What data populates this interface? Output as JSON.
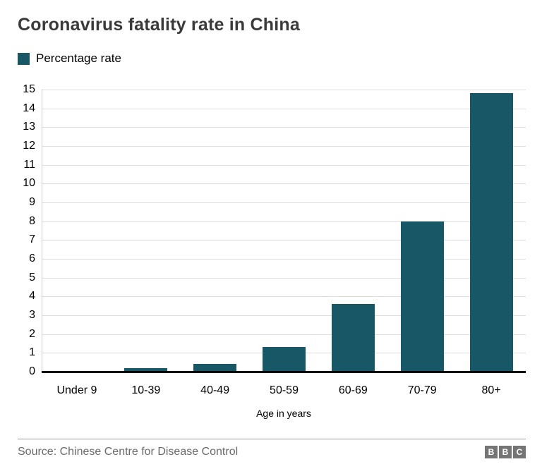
{
  "header": {
    "title": "Coronavirus fatality rate in China",
    "legend": {
      "label": "Percentage rate",
      "swatch_color": "#175766"
    }
  },
  "chart_data": {
    "type": "bar",
    "title": "Coronavirus fatality rate in China",
    "series_name": "Percentage rate",
    "categories": [
      "Under 9",
      "10-39",
      "40-49",
      "50-59",
      "60-69",
      "70-79",
      "80+"
    ],
    "values": [
      0,
      0.2,
      0.4,
      1.3,
      3.6,
      8.0,
      14.8
    ],
    "xlabel": "Age in years",
    "ylabel": "",
    "ylim": [
      0,
      15
    ],
    "ytick_step": 1,
    "grid": true,
    "legend_position": "top-left",
    "bar_color": "#175766",
    "gridline_color": "#dedede",
    "axis_color": "#000000"
  },
  "footer": {
    "source": "Source: Chinese Centre for Disease Control",
    "bbc_logo_letters": [
      "B",
      "B",
      "C"
    ]
  },
  "colors": {
    "title_text": "#3a3a3a",
    "source_text": "#6a6a6a",
    "bbc_block": "#757575"
  }
}
